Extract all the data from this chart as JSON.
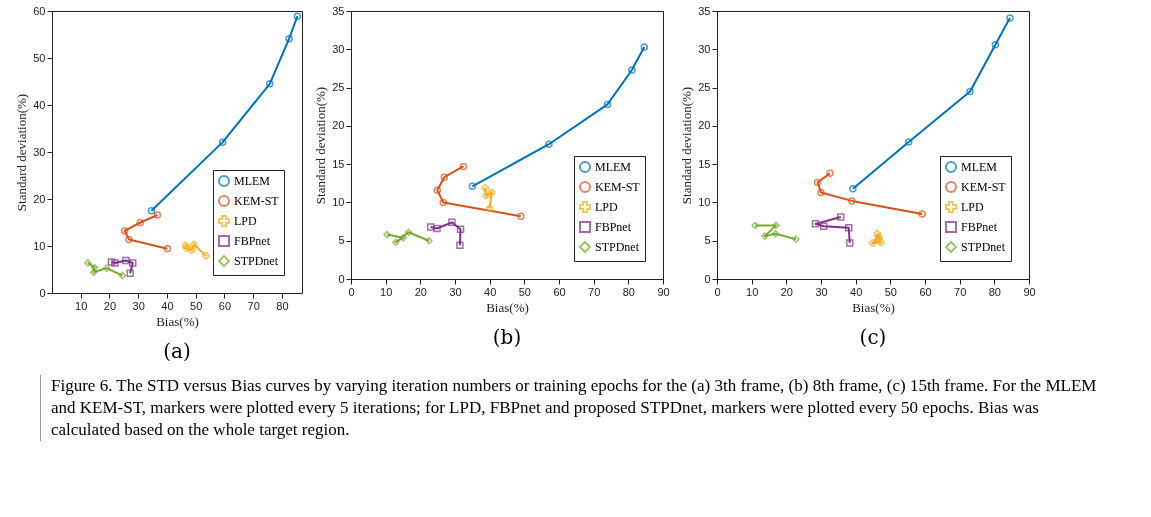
{
  "chart_data": [
    {
      "type": "line",
      "title": "(a)",
      "xlabel": "Bias(%)",
      "ylabel": "Standard deviation(%)",
      "xlim": [
        0,
        87
      ],
      "xticks": [
        10,
        20,
        30,
        40,
        50,
        60,
        70,
        80
      ],
      "ylim": [
        0,
        60
      ],
      "yticks": [
        0,
        10,
        20,
        30,
        40,
        50,
        60
      ],
      "legend": "bottom right",
      "annotations": [
        "Figure 6. The STD versus Bias curves by varying iteration numbers or training epochs for the (a) 3th frame, (b) 8th frame, (c) 15th frame. For the MLEM and KEM-ST, markers were plotted every 5 iterations; for LPD, FBPnet and proposed STPDnet, markers were plotted every 50 epochs. Bias was calculated based on the whole target region."
      ],
      "series": [
        {
          "name": "MLEM",
          "color": "#0072bd",
          "marker": "circle",
          "x": [
            34.6,
            59.4,
            75.8,
            82.5,
            85.4
          ],
          "values": [
            17.5,
            32.1,
            44.5,
            54.1,
            58.9
          ]
        },
        {
          "name": "KEM-ST",
          "color": "#d95319",
          "marker": "circle",
          "x": [
            36.7,
            30.7,
            25.3,
            26.8,
            40.2
          ],
          "values": [
            16.6,
            15.0,
            13.2,
            11.4,
            9.4
          ]
        },
        {
          "name": "LPD",
          "color": "#edb120",
          "marker": "cross",
          "x": [
            46.5,
            46.8,
            48.6,
            49.4,
            53.6
          ],
          "values": [
            10.1,
            9.6,
            9.1,
            10.3,
            7.9
          ]
        },
        {
          "name": "FBPnet",
          "color": "#7e2f8e",
          "marker": "square",
          "x": [
            20.7,
            21.9,
            25.7,
            28.1,
            27.2
          ],
          "values": [
            6.6,
            6.4,
            6.9,
            6.4,
            4.2
          ]
        },
        {
          "name": "STPDnet",
          "color": "#77ac30",
          "marker": "diamond",
          "x": [
            12.5,
            14.8,
            14.5,
            19.0,
            24.5
          ],
          "values": [
            6.4,
            5.4,
            4.4,
            5.3,
            3.7
          ]
        }
      ]
    },
    {
      "type": "line",
      "title": "(b)",
      "xlabel": "Bias(%)",
      "ylabel": "Standard deviation(%)",
      "xlim": [
        0,
        90
      ],
      "xticks": [
        0,
        10,
        20,
        30,
        40,
        50,
        60,
        70,
        80,
        90
      ],
      "ylim": [
        0,
        35
      ],
      "yticks": [
        0,
        5,
        10,
        15,
        20,
        25,
        30,
        35
      ],
      "legend": "bottom right",
      "series": [
        {
          "name": "MLEM",
          "color": "#0072bd",
          "marker": "circle",
          "x": [
            35.0,
            57.1,
            74.0,
            81.0,
            84.6
          ],
          "values": [
            12.1,
            17.6,
            22.8,
            27.3,
            30.3
          ]
        },
        {
          "name": "KEM-ST",
          "color": "#d95319",
          "marker": "circle",
          "x": [
            32.4,
            26.9,
            24.9,
            26.6,
            49.0
          ],
          "values": [
            14.7,
            13.3,
            11.6,
            10.0,
            8.2
          ]
        },
        {
          "name": "LPD",
          "color": "#edb120",
          "marker": "cross",
          "x": [
            38.7,
            39.0,
            40.6,
            40.0
          ],
          "values": [
            11.9,
            10.9,
            11.3,
            9.2
          ]
        },
        {
          "name": "FBPnet",
          "color": "#7e2f8e",
          "marker": "square",
          "x": [
            23.0,
            24.8,
            29.1,
            31.6,
            31.4
          ],
          "values": [
            6.8,
            6.6,
            7.4,
            6.5,
            4.4
          ]
        },
        {
          "name": "STPDnet",
          "color": "#77ac30",
          "marker": "diamond",
          "x": [
            10.4,
            15.1,
            12.9,
            16.6,
            22.5
          ],
          "values": [
            5.8,
            5.4,
            4.8,
            6.1,
            5.0
          ]
        }
      ]
    },
    {
      "type": "line",
      "title": "(c)",
      "xlabel": "Bias(%)",
      "ylabel": "Standard deviation(%)",
      "xlim": [
        0,
        90
      ],
      "xticks": [
        0,
        10,
        20,
        30,
        40,
        50,
        60,
        70,
        80,
        90
      ],
      "ylim": [
        0,
        35
      ],
      "yticks": [
        0,
        5,
        10,
        15,
        20,
        25,
        30,
        35
      ],
      "legend": "bottom right",
      "series": [
        {
          "name": "MLEM",
          "color": "#0072bd",
          "marker": "circle",
          "x": [
            39.2,
            55.3,
            73.0,
            80.3,
            84.5
          ],
          "values": [
            11.8,
            17.9,
            24.5,
            30.6,
            34.1
          ]
        },
        {
          "name": "KEM-ST",
          "color": "#d95319",
          "marker": "circle",
          "x": [
            32.6,
            29.0,
            30.0,
            38.9,
            59.2
          ],
          "values": [
            13.8,
            12.6,
            11.3,
            10.2,
            8.5
          ]
        },
        {
          "name": "LPD",
          "color": "#edb120",
          "marker": "cross",
          "x": [
            46.2,
            46.4,
            44.9,
            47.3,
            46.7
          ],
          "values": [
            5.9,
            5.3,
            4.7,
            4.8,
            5.5
          ]
        },
        {
          "name": "FBPnet",
          "color": "#7e2f8e",
          "marker": "square",
          "x": [
            35.7,
            28.4,
            30.8,
            38.0,
            38.3
          ],
          "values": [
            8.1,
            7.2,
            6.9,
            6.7,
            4.7
          ]
        },
        {
          "name": "STPDnet",
          "color": "#77ac30",
          "marker": "diamond",
          "x": [
            11.0,
            17.0,
            13.8,
            16.9,
            22.8
          ],
          "values": [
            7.0,
            7.0,
            5.6,
            5.9,
            5.2
          ]
        }
      ]
    }
  ]
}
